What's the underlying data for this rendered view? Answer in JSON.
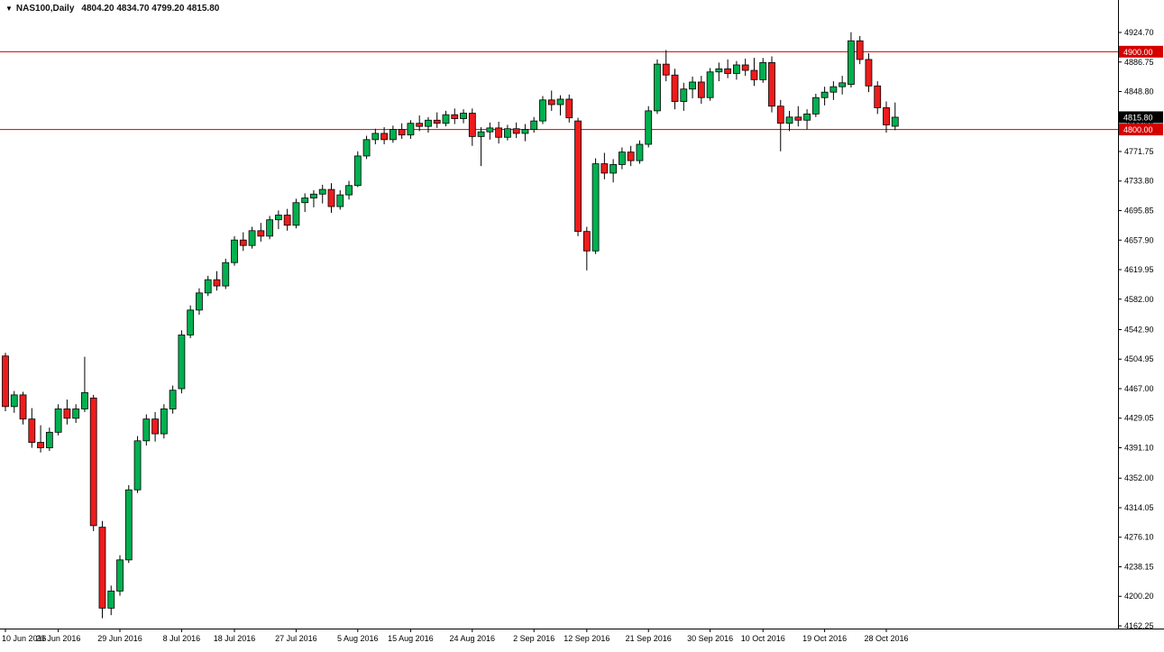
{
  "header": {
    "dropdown_icon": "▼",
    "symbol_period": "NAS100,Daily",
    "ohlc_text": "4804.20 4834.70 4799.20 4815.80"
  },
  "colors": {
    "background": "#ffffff",
    "up": "#00b050",
    "down": "#ee1c1c",
    "outline": "#000000",
    "level_line": "#d40000",
    "badge_level_bg": "#d40000",
    "badge_current_bg": "#000000",
    "badge_text": "#ffffff",
    "axis_text": "#000000"
  },
  "chart_data": {
    "type": "candlestick",
    "symbol": "NAS100",
    "timeframe": "Daily",
    "grid": false,
    "legend": false,
    "last_bar": {
      "open": 4804.2,
      "high": 4834.7,
      "low": 4799.2,
      "close": 4815.8
    },
    "levels": [
      {
        "label": "4900.00",
        "value": 4900.0
      },
      {
        "label": "4800.00",
        "value": 4800.0
      }
    ],
    "y_axis": {
      "ylim": [
        4162.25,
        4924.7
      ],
      "current_price": 4815.8,
      "current_price_label": "4815.80",
      "ticks": [
        4924.7,
        4886.75,
        4848.8,
        4810.85,
        4771.75,
        4733.8,
        4695.85,
        4657.9,
        4619.95,
        4582.0,
        4542.9,
        4504.95,
        4467.0,
        4429.05,
        4391.1,
        4352.0,
        4314.05,
        4276.1,
        4238.15,
        4200.2,
        4162.25
      ]
    },
    "x_axis": {
      "labels": [
        {
          "text": "10 Jun 2016",
          "bar": 0
        },
        {
          "text": "20 Jun 2016",
          "bar": 6
        },
        {
          "text": "29 Jun 2016",
          "bar": 13
        },
        {
          "text": "8 Jul 2016",
          "bar": 20
        },
        {
          "text": "18 Jul 2016",
          "bar": 26
        },
        {
          "text": "27 Jul 2016",
          "bar": 33
        },
        {
          "text": "5 Aug 2016",
          "bar": 40
        },
        {
          "text": "15 Aug 2016",
          "bar": 46
        },
        {
          "text": "24 Aug 2016",
          "bar": 53
        },
        {
          "text": "2 Sep 2016",
          "bar": 60
        },
        {
          "text": "12 Sep 2016",
          "bar": 66
        },
        {
          "text": "21 Sep 2016",
          "bar": 73
        },
        {
          "text": "30 Sep 2016",
          "bar": 80
        },
        {
          "text": "10 Oct 2016",
          "bar": 86
        },
        {
          "text": "19 Oct 2016",
          "bar": 93
        },
        {
          "text": "28 Oct 2016",
          "bar": 100
        }
      ]
    },
    "candles": [
      [
        4509,
        4513,
        4438,
        4444
      ],
      [
        4444,
        4464,
        4436,
        4459
      ],
      [
        4459,
        4463,
        4421,
        4428
      ],
      [
        4428,
        4442,
        4391,
        4398
      ],
      [
        4398,
        4420,
        4385,
        4391
      ],
      [
        4391,
        4417,
        4387,
        4411
      ],
      [
        4411,
        4447,
        4407,
        4441
      ],
      [
        4441,
        4453,
        4421,
        4429
      ],
      [
        4429,
        4447,
        4423,
        4441
      ],
      [
        4441,
        4508,
        4437,
        4462
      ],
      [
        4455,
        4459,
        4284,
        4291
      ],
      [
        4289,
        4297,
        4172,
        4185
      ],
      [
        4185,
        4214,
        4176,
        4207
      ],
      [
        4207,
        4253,
        4201,
        4247
      ],
      [
        4247,
        4343,
        4243,
        4337
      ],
      [
        4337,
        4406,
        4333,
        4400
      ],
      [
        4400,
        4434,
        4394,
        4428
      ],
      [
        4428,
        4437,
        4399,
        4409
      ],
      [
        4409,
        4447,
        4403,
        4441
      ],
      [
        4441,
        4471,
        4435,
        4465
      ],
      [
        4467,
        4542,
        4461,
        4536
      ],
      [
        4536,
        4574,
        4532,
        4568
      ],
      [
        4568,
        4596,
        4562,
        4590
      ],
      [
        4590,
        4612,
        4586,
        4607
      ],
      [
        4607,
        4618,
        4593,
        4599
      ],
      [
        4599,
        4634,
        4595,
        4629
      ],
      [
        4629,
        4663,
        4625,
        4658
      ],
      [
        4658,
        4668,
        4644,
        4651
      ],
      [
        4651,
        4675,
        4647,
        4670
      ],
      [
        4670,
        4680,
        4656,
        4663
      ],
      [
        4663,
        4689,
        4659,
        4684
      ],
      [
        4684,
        4696,
        4672,
        4690
      ],
      [
        4690,
        4698,
        4670,
        4677
      ],
      [
        4677,
        4711,
        4673,
        4706
      ],
      [
        4706,
        4718,
        4694,
        4712
      ],
      [
        4712,
        4722,
        4700,
        4717
      ],
      [
        4717,
        4729,
        4705,
        4723
      ],
      [
        4723,
        4731,
        4693,
        4701
      ],
      [
        4701,
        4722,
        4697,
        4716
      ],
      [
        4716,
        4734,
        4710,
        4728
      ],
      [
        4728,
        4772,
        4726,
        4766
      ],
      [
        4766,
        4792,
        4762,
        4787
      ],
      [
        4787,
        4801,
        4781,
        4795
      ],
      [
        4795,
        4803,
        4781,
        4787
      ],
      [
        4787,
        4805,
        4783,
        4800
      ],
      [
        4800,
        4808,
        4788,
        4793
      ],
      [
        4793,
        4812,
        4788,
        4808
      ],
      [
        4808,
        4818,
        4798,
        4804
      ],
      [
        4804,
        4816,
        4796,
        4812
      ],
      [
        4812,
        4822,
        4802,
        4808
      ],
      [
        4808,
        4824,
        4804,
        4819
      ],
      [
        4819,
        4827,
        4807,
        4814
      ],
      [
        4814,
        4826,
        4808,
        4821
      ],
      [
        4821,
        4827,
        4779,
        4791
      ],
      [
        4791,
        4803,
        4753,
        4797
      ],
      [
        4797,
        4809,
        4787,
        4802
      ],
      [
        4802,
        4810,
        4782,
        4790
      ],
      [
        4790,
        4806,
        4786,
        4801
      ],
      [
        4801,
        4809,
        4789,
        4795
      ],
      [
        4795,
        4807,
        4785,
        4800
      ],
      [
        4800,
        4816,
        4796,
        4811
      ],
      [
        4811,
        4843,
        4807,
        4838
      ],
      [
        4838,
        4850,
        4824,
        4832
      ],
      [
        4832,
        4844,
        4818,
        4839
      ],
      [
        4839,
        4845,
        4809,
        4815
      ],
      [
        4811,
        4815,
        4663,
        4669
      ],
      [
        4669,
        4675,
        4619,
        4644
      ],
      [
        4644,
        4763,
        4640,
        4756
      ],
      [
        4756,
        4770,
        4736,
        4744
      ],
      [
        4744,
        4762,
        4732,
        4755
      ],
      [
        4755,
        4777,
        4749,
        4771
      ],
      [
        4771,
        4779,
        4753,
        4760
      ],
      [
        4760,
        4786,
        4756,
        4781
      ],
      [
        4781,
        4830,
        4777,
        4824
      ],
      [
        4824,
        4890,
        4820,
        4884
      ],
      [
        4884,
        4902,
        4862,
        4870
      ],
      [
        4870,
        4878,
        4826,
        4836
      ],
      [
        4836,
        4860,
        4824,
        4852
      ],
      [
        4852,
        4868,
        4840,
        4861
      ],
      [
        4861,
        4869,
        4833,
        4841
      ],
      [
        4841,
        4879,
        4837,
        4874
      ],
      [
        4874,
        4886,
        4862,
        4878
      ],
      [
        4878,
        4890,
        4866,
        4872
      ],
      [
        4872,
        4888,
        4864,
        4883
      ],
      [
        4883,
        4891,
        4869,
        4876
      ],
      [
        4876,
        4892,
        4856,
        4864
      ],
      [
        4864,
        4892,
        4860,
        4886
      ],
      [
        4886,
        4894,
        4822,
        4830
      ],
      [
        4830,
        4838,
        4772,
        4808
      ],
      [
        4808,
        4824,
        4798,
        4816
      ],
      [
        4816,
        4830,
        4804,
        4812
      ],
      [
        4812,
        4826,
        4800,
        4820
      ],
      [
        4820,
        4846,
        4816,
        4841
      ],
      [
        4841,
        4855,
        4831,
        4848
      ],
      [
        4848,
        4862,
        4838,
        4855
      ],
      [
        4855,
        4869,
        4845,
        4860
      ],
      [
        4858,
        4925,
        4854,
        4914
      ],
      [
        4914,
        4920,
        4884,
        4890
      ],
      [
        4890,
        4898,
        4848,
        4856
      ],
      [
        4856,
        4862,
        4820,
        4828
      ],
      [
        4828,
        4836,
        4796,
        4806
      ],
      [
        4804.2,
        4834.7,
        4799.2,
        4815.8
      ]
    ]
  }
}
